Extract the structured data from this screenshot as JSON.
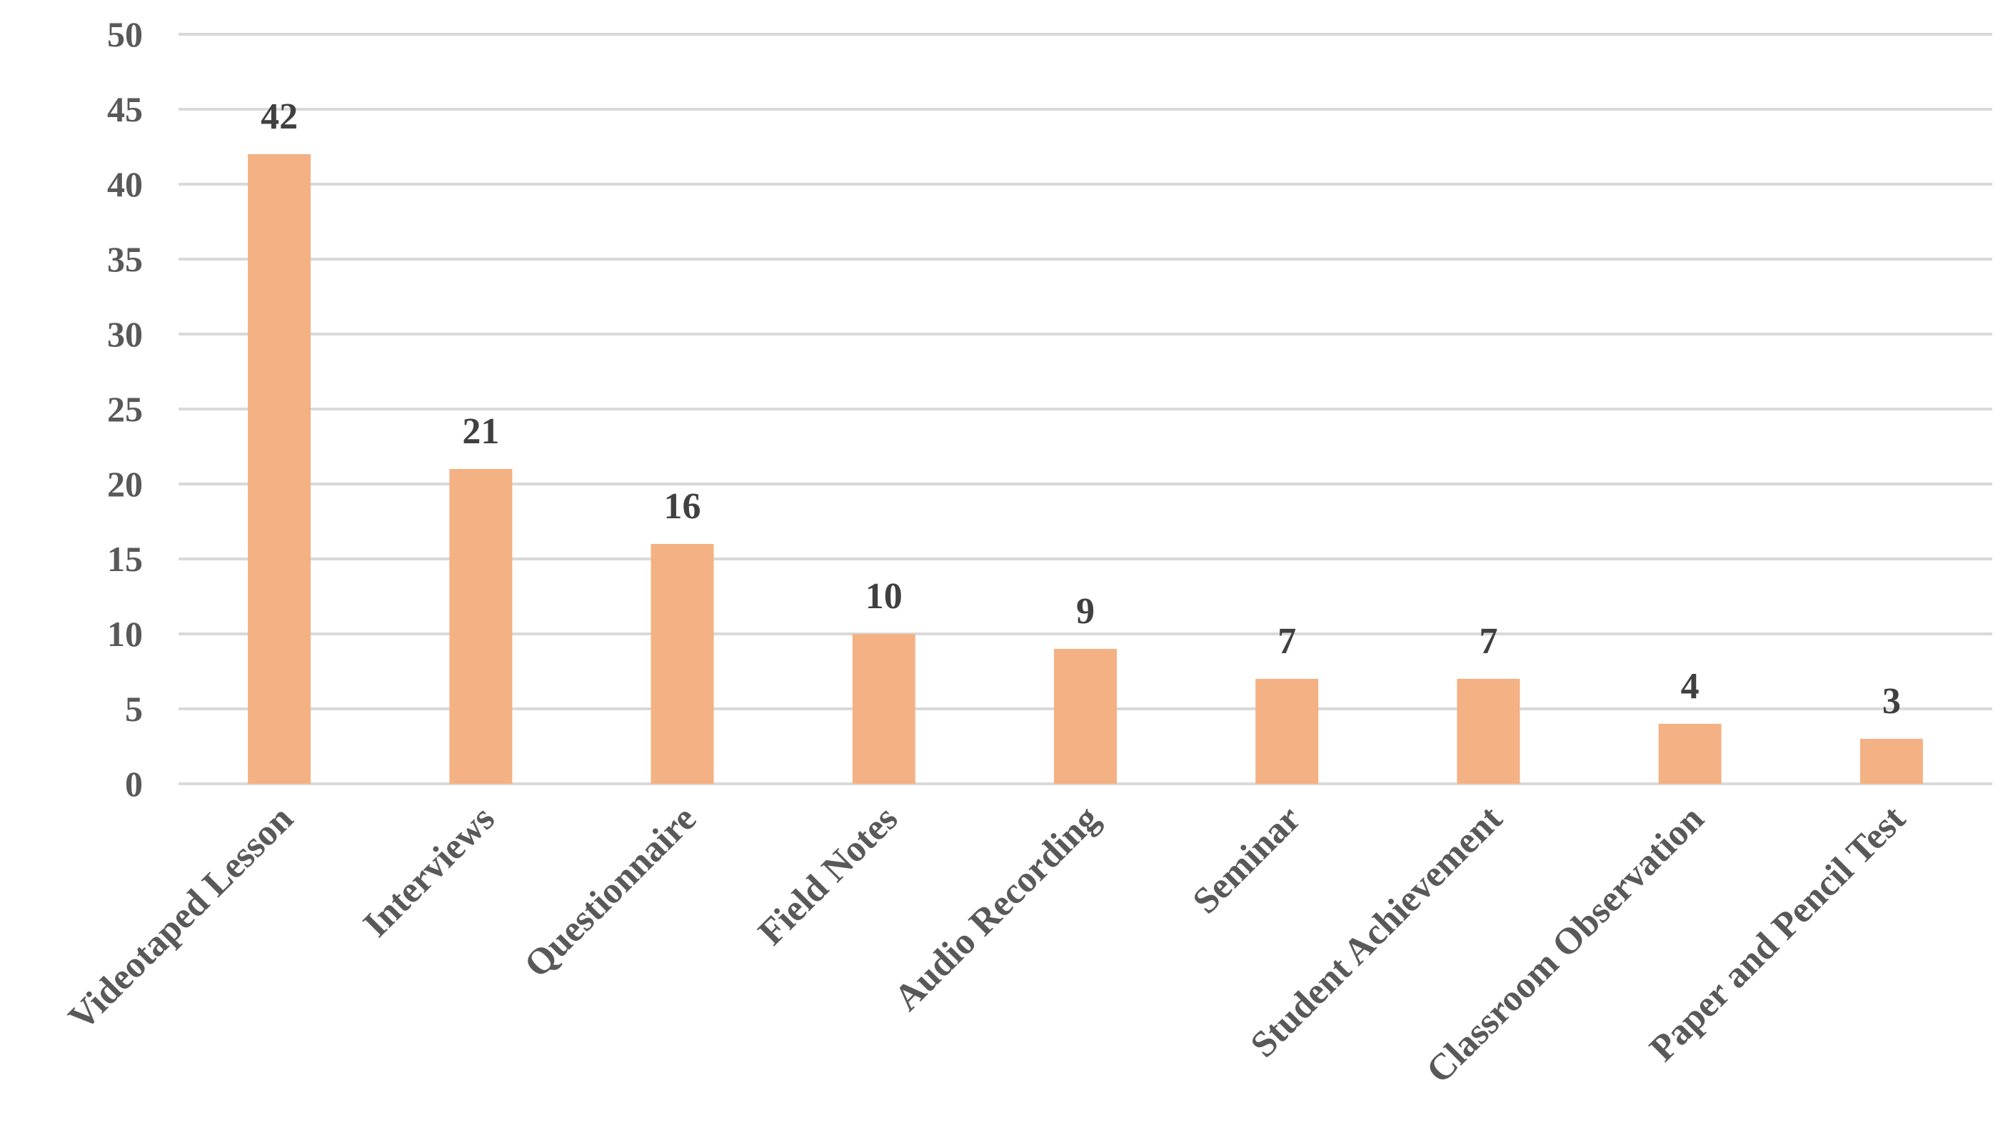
{
  "chart_data": {
    "type": "bar",
    "title": "",
    "xlabel": "",
    "ylabel": "",
    "categories": [
      "Videotaped Lesson",
      "Interviews",
      "Questionnaire",
      "Field Notes",
      "Audio Recording",
      "Seminar",
      "Student Achievement",
      "Classroom Observation",
      "Paper and Pencil Test"
    ],
    "values": [
      42,
      21,
      16,
      10,
      9,
      7,
      7,
      4,
      3
    ],
    "ylim": [
      0,
      50
    ],
    "yticks": [
      0,
      5,
      10,
      15,
      20,
      25,
      30,
      35,
      40,
      45,
      50
    ],
    "grid": true,
    "legend": "none",
    "data_labels": true,
    "colors": {
      "bar": "#f4b183",
      "grid": "#d9d9d9",
      "text": "#595959"
    }
  }
}
